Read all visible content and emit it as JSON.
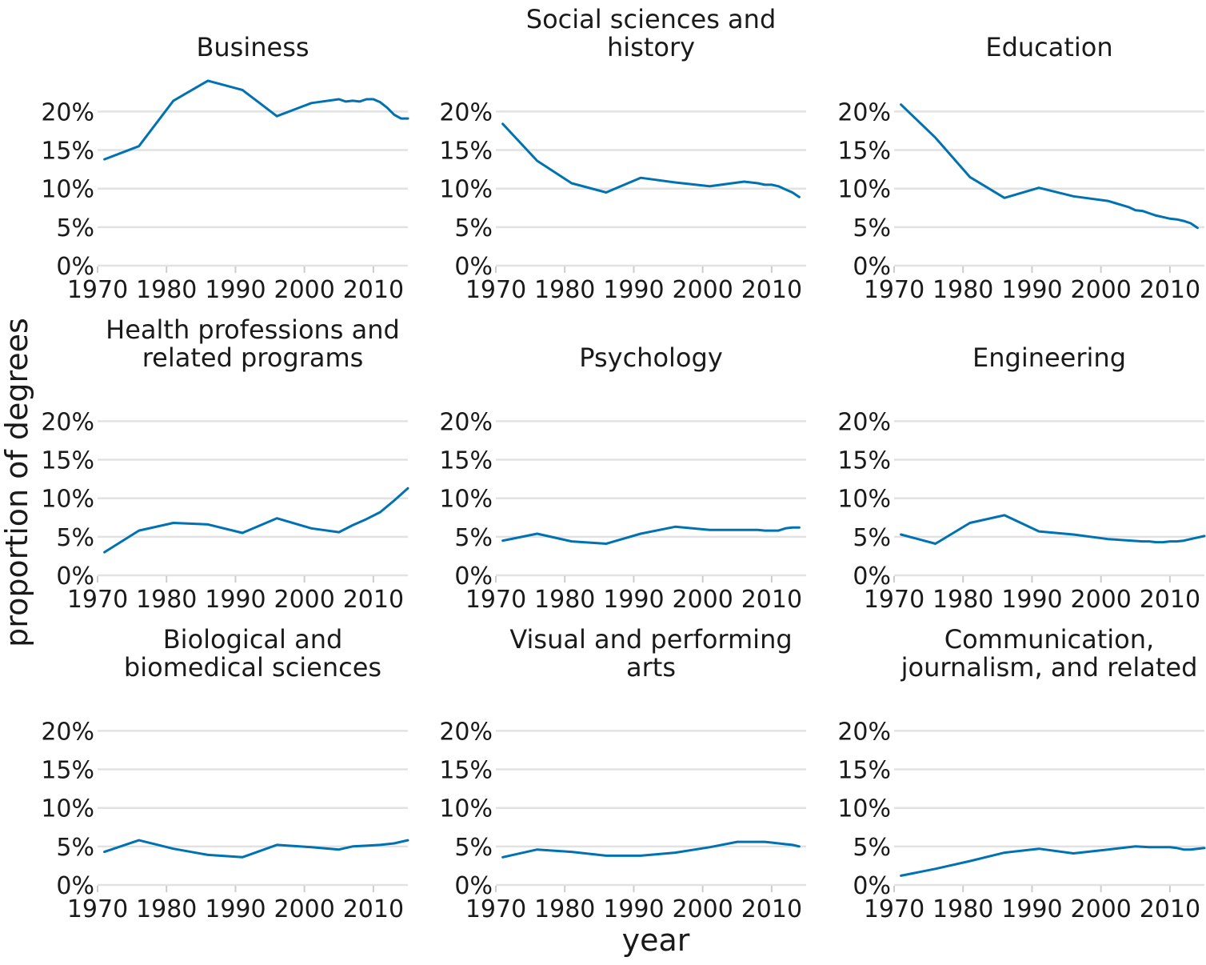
{
  "axes": {
    "xlabel": "year",
    "ylabel": "proportion of degrees"
  },
  "chart_data": {
    "type": "line",
    "xlim": [
      1970,
      2015
    ],
    "ylim": [
      0,
      0.24
    ],
    "x_ticks": [
      1970,
      1980,
      1990,
      2000,
      2010
    ],
    "x_tick_labels": [
      "1970",
      "1980",
      "1990",
      "2000",
      "2010"
    ],
    "y_ticks": [
      0,
      0.05,
      0.1,
      0.15,
      0.2
    ],
    "y_tick_labels": [
      "0%",
      "5%",
      "10%",
      "15%",
      "20%"
    ],
    "grid": true,
    "color": "#0072B2",
    "panels": [
      {
        "title_lines": [
          "Business"
        ],
        "points": [
          [
            1971,
            0.138
          ],
          [
            1976,
            0.155
          ],
          [
            1981,
            0.214
          ],
          [
            1986,
            0.24
          ],
          [
            1991,
            0.228
          ],
          [
            1996,
            0.194
          ],
          [
            2001,
            0.211
          ],
          [
            2005,
            0.216
          ],
          [
            2006,
            0.213
          ],
          [
            2007,
            0.214
          ],
          [
            2008,
            0.213
          ],
          [
            2009,
            0.216
          ],
          [
            2010,
            0.216
          ],
          [
            2011,
            0.212
          ],
          [
            2012,
            0.205
          ],
          [
            2013,
            0.196
          ],
          [
            2014,
            0.191
          ],
          [
            2015,
            0.191
          ]
        ]
      },
      {
        "title_lines": [
          "Social sciences and",
          "history"
        ],
        "points": [
          [
            1971,
            0.184
          ],
          [
            1976,
            0.136
          ],
          [
            1981,
            0.107
          ],
          [
            1986,
            0.095
          ],
          [
            1991,
            0.114
          ],
          [
            1996,
            0.108
          ],
          [
            2001,
            0.103
          ],
          [
            2006,
            0.109
          ],
          [
            2008,
            0.107
          ],
          [
            2009,
            0.105
          ],
          [
            2010,
            0.105
          ],
          [
            2011,
            0.103
          ],
          [
            2012,
            0.099
          ],
          [
            2013,
            0.095
          ],
          [
            2014,
            0.089
          ]
        ]
      },
      {
        "title_lines": [
          "Education"
        ],
        "points": [
          [
            1971,
            0.209
          ],
          [
            1976,
            0.166
          ],
          [
            1981,
            0.115
          ],
          [
            1986,
            0.088
          ],
          [
            1991,
            0.101
          ],
          [
            1996,
            0.09
          ],
          [
            2001,
            0.084
          ],
          [
            2004,
            0.076
          ],
          [
            2005,
            0.072
          ],
          [
            2006,
            0.071
          ],
          [
            2007,
            0.068
          ],
          [
            2008,
            0.065
          ],
          [
            2009,
            0.063
          ],
          [
            2010,
            0.061
          ],
          [
            2011,
            0.06
          ],
          [
            2012,
            0.058
          ],
          [
            2013,
            0.055
          ],
          [
            2014,
            0.049
          ]
        ]
      },
      {
        "title_lines": [
          "Health professions and",
          "related programs"
        ],
        "points": [
          [
            1971,
            0.03
          ],
          [
            1976,
            0.058
          ],
          [
            1981,
            0.068
          ],
          [
            1986,
            0.066
          ],
          [
            1991,
            0.055
          ],
          [
            1996,
            0.074
          ],
          [
            2001,
            0.061
          ],
          [
            2005,
            0.056
          ],
          [
            2007,
            0.065
          ],
          [
            2009,
            0.073
          ],
          [
            2011,
            0.082
          ],
          [
            2013,
            0.097
          ],
          [
            2015,
            0.113
          ]
        ]
      },
      {
        "title_lines": [
          "Psychology"
        ],
        "points": [
          [
            1971,
            0.045
          ],
          [
            1976,
            0.054
          ],
          [
            1981,
            0.044
          ],
          [
            1986,
            0.041
          ],
          [
            1991,
            0.054
          ],
          [
            1996,
            0.063
          ],
          [
            2001,
            0.059
          ],
          [
            2006,
            0.059
          ],
          [
            2008,
            0.059
          ],
          [
            2009,
            0.058
          ],
          [
            2010,
            0.058
          ],
          [
            2011,
            0.058
          ],
          [
            2012,
            0.061
          ],
          [
            2013,
            0.062
          ],
          [
            2014,
            0.062
          ]
        ]
      },
      {
        "title_lines": [
          "Engineering"
        ],
        "points": [
          [
            1971,
            0.053
          ],
          [
            1976,
            0.041
          ],
          [
            1981,
            0.068
          ],
          [
            1986,
            0.078
          ],
          [
            1991,
            0.057
          ],
          [
            1996,
            0.053
          ],
          [
            2001,
            0.047
          ],
          [
            2006,
            0.044
          ],
          [
            2007,
            0.044
          ],
          [
            2008,
            0.043
          ],
          [
            2009,
            0.043
          ],
          [
            2010,
            0.044
          ],
          [
            2011,
            0.044
          ],
          [
            2012,
            0.045
          ],
          [
            2013,
            0.047
          ],
          [
            2015,
            0.051
          ]
        ]
      },
      {
        "title_lines": [
          "Biological and",
          "biomedical sciences"
        ],
        "points": [
          [
            1971,
            0.043
          ],
          [
            1976,
            0.058
          ],
          [
            1981,
            0.047
          ],
          [
            1986,
            0.039
          ],
          [
            1991,
            0.036
          ],
          [
            1996,
            0.052
          ],
          [
            2001,
            0.049
          ],
          [
            2005,
            0.046
          ],
          [
            2007,
            0.05
          ],
          [
            2009,
            0.051
          ],
          [
            2011,
            0.052
          ],
          [
            2013,
            0.054
          ],
          [
            2015,
            0.058
          ]
        ]
      },
      {
        "title_lines": [
          "Visual and performing",
          "arts"
        ],
        "points": [
          [
            1971,
            0.036
          ],
          [
            1976,
            0.046
          ],
          [
            1981,
            0.043
          ],
          [
            1986,
            0.038
          ],
          [
            1991,
            0.038
          ],
          [
            1996,
            0.042
          ],
          [
            2001,
            0.049
          ],
          [
            2005,
            0.056
          ],
          [
            2007,
            0.056
          ],
          [
            2009,
            0.056
          ],
          [
            2010,
            0.055
          ],
          [
            2011,
            0.054
          ],
          [
            2012,
            0.053
          ],
          [
            2013,
            0.052
          ],
          [
            2014,
            0.05
          ]
        ]
      },
      {
        "title_lines": [
          "Communication,",
          "journalism, and related"
        ],
        "points": [
          [
            1971,
            0.012
          ],
          [
            1976,
            0.021
          ],
          [
            1981,
            0.031
          ],
          [
            1986,
            0.042
          ],
          [
            1991,
            0.047
          ],
          [
            1996,
            0.041
          ],
          [
            2001,
            0.046
          ],
          [
            2005,
            0.05
          ],
          [
            2007,
            0.049
          ],
          [
            2009,
            0.049
          ],
          [
            2010,
            0.049
          ],
          [
            2011,
            0.048
          ],
          [
            2012,
            0.046
          ],
          [
            2013,
            0.046
          ],
          [
            2015,
            0.048
          ]
        ]
      }
    ]
  }
}
